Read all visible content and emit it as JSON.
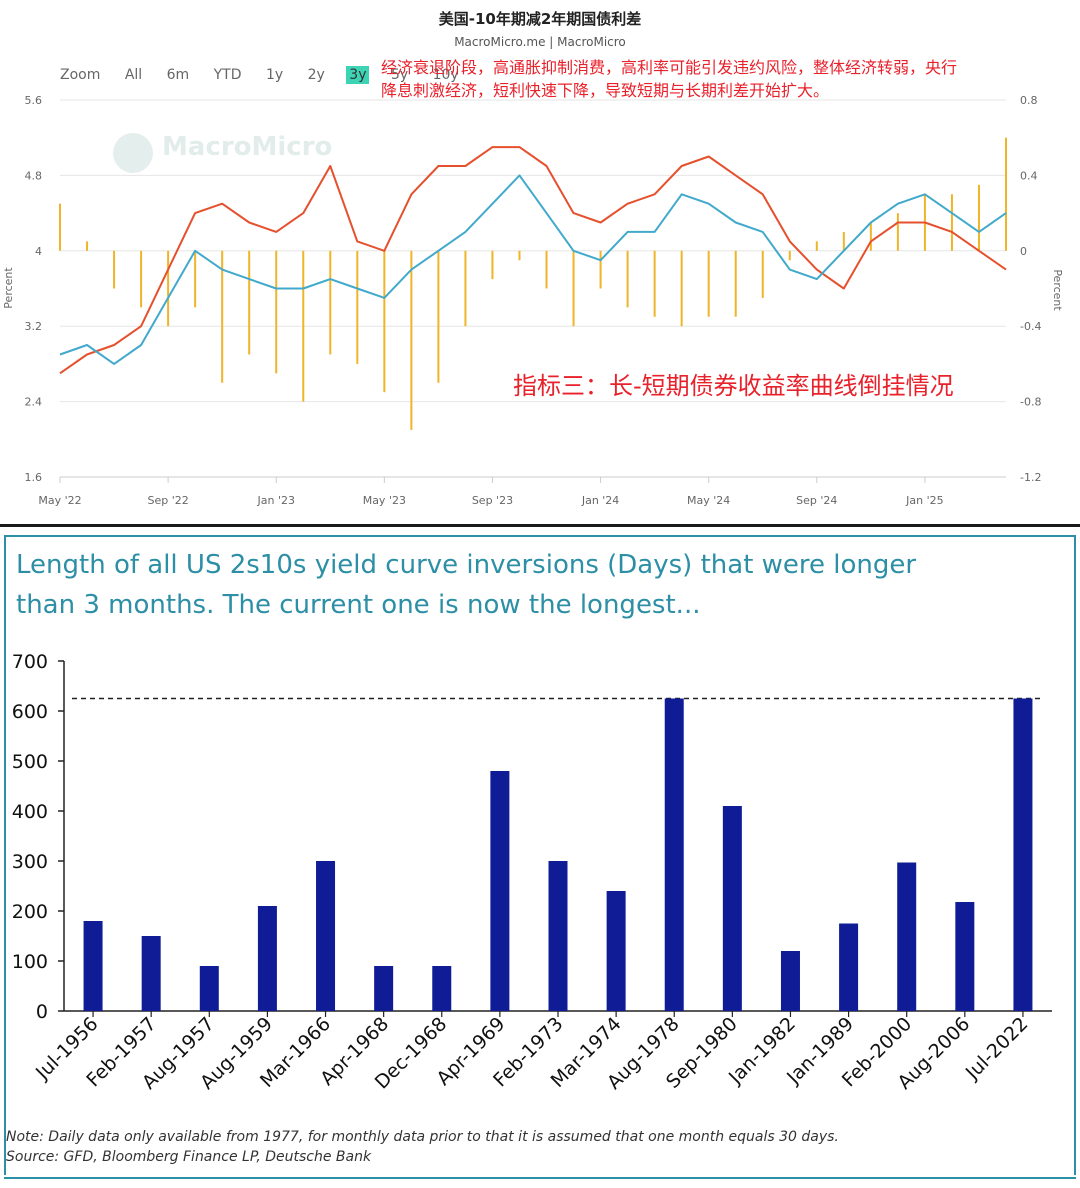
{
  "top_chart": {
    "title": "美国-10年期减2年期国债利差",
    "subtitle": "MacroMicro.me | MacroMicro",
    "watermark": "MacroMicro",
    "zoom_label": "Zoom",
    "zoom_options": [
      "All",
      "6m",
      "YTD",
      "1y",
      "2y",
      "3y",
      "5y",
      "10y"
    ],
    "zoom_active": "3y",
    "annotation_line1": "经济衰退阶段，高通胀抑制消费，高利率可能引发违约风险，整体经济转弱，央行",
    "annotation_line2": "降息刺激经济，短利快速下降，导致短期与长期利差开始扩大。",
    "big_annotation": "指标三：长-短期债券收益率曲线倒挂情况",
    "y_left_label": "Percent",
    "y_right_label": "Percent",
    "y_left_ticks": [
      "5.6",
      "4.8",
      "4",
      "3.2",
      "2.4",
      "1.6"
    ],
    "y_right_ticks": [
      "0.8",
      "0.4",
      "0",
      "-0.4",
      "-0.8",
      "-1.2"
    ],
    "x_ticks": [
      "May '22",
      "Sep '22",
      "Jan '23",
      "May '23",
      "Sep '23",
      "Jan '24",
      "May '24",
      "Sep '24",
      "Jan '25"
    ],
    "colors": {
      "red_series": "#e5502d",
      "blue_series": "#41a9cc",
      "spread_bars": "#f0b429",
      "zoom_active": "#3cd4b4",
      "annotation": "#e8212b"
    }
  },
  "chart_data": [
    {
      "type": "line",
      "title": "美国-10年期减2年期国债利差",
      "ylabel": "Percent",
      "ylim": [
        1.6,
        5.6
      ],
      "y2lim": [
        -1.2,
        0.8
      ],
      "x": [
        "May '22",
        "Jun '22",
        "Jul '22",
        "Aug '22",
        "Sep '22",
        "Oct '22",
        "Nov '22",
        "Dec '22",
        "Jan '23",
        "Feb '23",
        "Mar '23",
        "Apr '23",
        "May '23",
        "Jun '23",
        "Jul '23",
        "Aug '23",
        "Sep '23",
        "Oct '23",
        "Nov '23",
        "Dec '23",
        "Jan '24",
        "Feb '24",
        "Mar '24",
        "Apr '24",
        "May '24",
        "Jun '24",
        "Jul '24",
        "Aug '24",
        "Sep '24",
        "Oct '24",
        "Nov '24",
        "Dec '24",
        "Jan '25",
        "Feb '25",
        "Mar '25",
        "Apr '25"
      ],
      "series": [
        {
          "values": [
            2.7,
            2.9,
            3.0,
            3.2,
            3.8,
            4.4,
            4.5,
            4.3,
            4.2,
            4.4,
            4.9,
            4.1,
            4.0,
            4.6,
            4.9,
            4.9,
            5.1,
            5.1,
            4.9,
            4.4,
            4.3,
            4.5,
            4.6,
            4.9,
            5.0,
            4.8,
            4.6,
            4.1,
            3.8,
            3.6,
            4.1,
            4.3,
            4.3,
            4.2,
            4.0,
            3.8
          ]
        },
        {
          "values": [
            2.9,
            3.0,
            2.8,
            3.0,
            3.5,
            4.0,
            3.8,
            3.7,
            3.6,
            3.6,
            3.7,
            3.6,
            3.5,
            3.8,
            4.0,
            4.2,
            4.5,
            4.8,
            4.4,
            4.0,
            3.9,
            4.2,
            4.2,
            4.6,
            4.5,
            4.3,
            4.2,
            3.8,
            3.7,
            4.0,
            4.3,
            4.5,
            4.6,
            4.4,
            4.2,
            4.4
          ]
        },
        {
          "values": [
            0.25,
            0.05,
            -0.2,
            -0.3,
            -0.4,
            -0.3,
            -0.7,
            -0.55,
            -0.65,
            -0.8,
            -0.55,
            -0.6,
            -0.75,
            -0.95,
            -0.7,
            -0.4,
            -0.15,
            -0.05,
            -0.2,
            -0.4,
            -0.2,
            -0.3,
            -0.35,
            -0.4,
            -0.35,
            -0.35,
            -0.25,
            -0.05,
            0.05,
            0.1,
            0.15,
            0.2,
            0.3,
            0.3,
            0.35,
            0.6
          ]
        }
      ]
    },
    {
      "type": "bar",
      "title": "Length of all US 2s10s yield curve inversions (Days) that were longer than 3 months. The current one is now the longest...",
      "categories": [
        "Jul-1956",
        "Feb-1957",
        "Aug-1957",
        "Aug-1959",
        "Mar-1966",
        "Apr-1968",
        "Dec-1968",
        "Apr-1969",
        "Feb-1973",
        "Mar-1974",
        "Aug-1978",
        "Sep-1980",
        "Jan-1982",
        "Jan-1989",
        "Feb-2000",
        "Aug-2006",
        "Jul-2022"
      ],
      "values": [
        180,
        150,
        90,
        210,
        300,
        90,
        90,
        480,
        300,
        240,
        625,
        410,
        120,
        175,
        297,
        218,
        625
      ],
      "ylim": [
        0,
        700
      ],
      "yticks": [
        "700",
        "600",
        "500",
        "400",
        "300",
        "200",
        "100",
        "0"
      ],
      "reference_line": 625,
      "bar_color": "#101c96"
    }
  ],
  "bottom_chart": {
    "title_line1": "Length of all US 2s10s yield curve inversions (Days) that were longer",
    "title_line2": "than 3 months. The current one is now the longest...",
    "note": "Note: Daily data only available from 1977, for monthly data prior to that it is assumed that one month equals 30 days.",
    "source": "Source: GFD, Bloomberg Finance LP, Deutsche Bank"
  }
}
